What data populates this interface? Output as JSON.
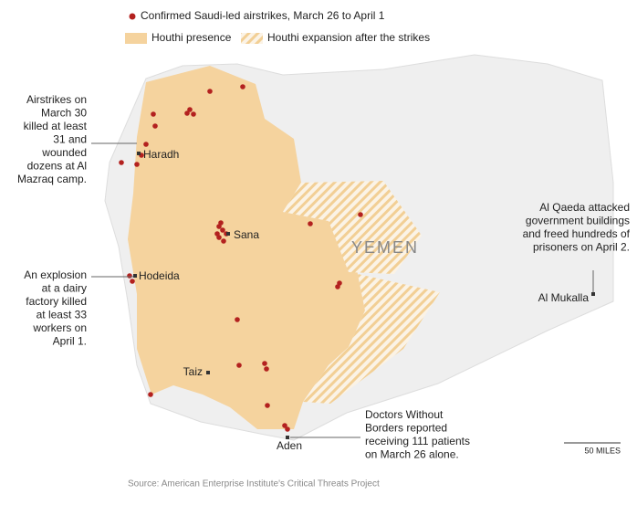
{
  "legend": {
    "airstrikes": "Confirmed Saudi-led airstrikes, March 26 to April 1",
    "presence": "Houthi presence",
    "expansion": "Houthi expansion after the strikes"
  },
  "country": "YEMEN",
  "cities": [
    "Haradh",
    "Sana",
    "Hodeida",
    "Taiz",
    "Aden",
    "Al Mukalla"
  ],
  "annotations": [
    {
      "lines": [
        "Airstrikes on",
        "March 30",
        "killed at least",
        "31 and",
        "wounded",
        "dozens at Al",
        "Mazraq camp."
      ]
    },
    {
      "lines": [
        "An explosion",
        "at a dairy",
        "factory killed",
        "at least 33",
        "workers on",
        "April 1."
      ]
    },
    {
      "lines": [
        "Al Qaeda attacked",
        "government buildings",
        "and freed hundreds of",
        "prisoners on April 2."
      ]
    },
    {
      "lines": [
        "Doctors Without",
        "Borders reported",
        "receiving 111 patients",
        "on March 26 alone."
      ]
    }
  ],
  "scale": "50 MILES",
  "source": "Source: American Enterprise Institute's Critical Threats Project"
}
